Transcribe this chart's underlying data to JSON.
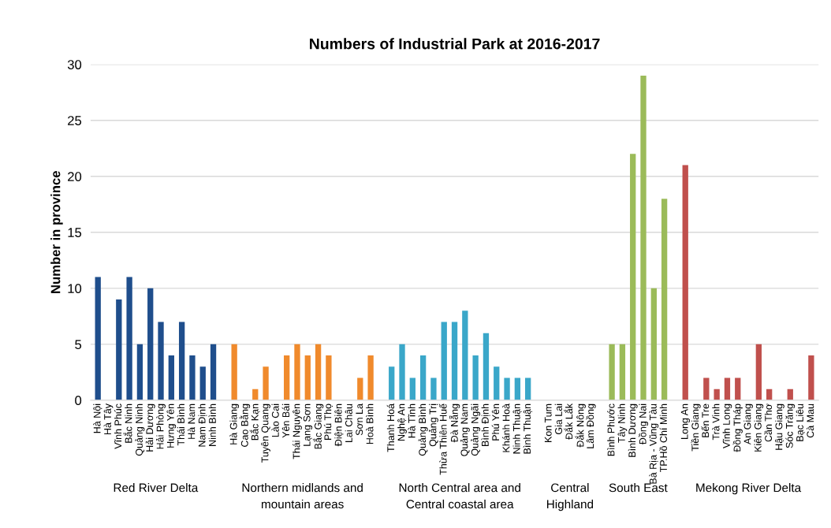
{
  "chart_data": {
    "type": "bar",
    "title": "Numbers of Industrial Park at 2016-2017",
    "ylabel": "Number in province",
    "categories": [
      "Hà Nội",
      "Hà Tây",
      "Vĩnh Phúc",
      "Bắc Ninh",
      "Quảng Ninh",
      "Hải Dương",
      "Hải Phòng",
      "Hưng Yên",
      "Thái Bình",
      "Hà Nam",
      "Nam Định",
      "Ninh Bình",
      null,
      "Hà Giang",
      "Cao Bằng",
      "Bắc Kạn",
      "Tuyên Quang",
      "Lào Cai",
      "Yên Bái",
      "Thái Nguyên",
      "Lạng Sơn",
      "Bắc Giang",
      "Phú Thọ",
      "Điện Biên",
      "Lai Châu",
      "Sơn La",
      "Hoà Bình",
      null,
      "Thanh Hoá",
      "Nghệ An",
      "Hà Tĩnh",
      "Quảng Bình",
      "Quảng Trị",
      "Thừa Thiên Huế",
      "Đà Nẵng",
      "Quảng Nam",
      "Quảng Ngãi",
      "Bình Định",
      "Phú Yên",
      "Khánh Hoà",
      "Ninh Thuận",
      "Bình Thuận",
      null,
      "Kon Tum",
      "Gia Lai",
      "Đắk Lắk",
      "Đắk Nông",
      "Lâm Đồng",
      null,
      "Bình Phước",
      "Tây Ninh",
      "Bình Dương",
      "Đồng Nai",
      "Bà Rịa - Vũng Tàu",
      "TP.Hồ Chí Minh",
      null,
      "Long An",
      "Tiền Giang",
      "Bến Tre",
      "Trà Vinh",
      "Vĩnh Long",
      "Đồng Tháp",
      "An Giang",
      "Kiên Giang",
      "Cần Thơ",
      "Hậu Giang",
      "Sóc Trăng",
      "Bạc Liêu",
      "Cà Mau"
    ],
    "values": [
      11,
      0,
      9,
      11,
      5,
      10,
      7,
      4,
      7,
      4,
      3,
      5,
      null,
      5,
      0,
      1,
      3,
      0,
      4,
      5,
      4,
      5,
      4,
      0,
      0,
      2,
      4,
      null,
      3,
      5,
      2,
      4,
      2,
      7,
      7,
      8,
      4,
      6,
      3,
      2,
      2,
      2,
      null,
      0,
      0,
      0,
      0,
      0,
      null,
      5,
      5,
      22,
      29,
      10,
      18,
      null,
      21,
      0,
      2,
      1,
      2,
      2,
      0,
      5,
      1,
      0,
      1,
      0,
      4
    ],
    "colors": [
      "#1f4e8c",
      "#1f4e8c",
      "#1f4e8c",
      "#1f4e8c",
      "#1f4e8c",
      "#1f4e8c",
      "#1f4e8c",
      "#1f4e8c",
      "#1f4e8c",
      "#1f4e8c",
      "#1f4e8c",
      "#1f4e8c",
      null,
      "#f08a2c",
      "#f08a2c",
      "#f08a2c",
      "#f08a2c",
      "#f08a2c",
      "#f08a2c",
      "#f08a2c",
      "#f08a2c",
      "#f08a2c",
      "#f08a2c",
      "#f08a2c",
      "#f08a2c",
      "#f08a2c",
      "#f08a2c",
      null,
      "#3aa7c9",
      "#3aa7c9",
      "#3aa7c9",
      "#3aa7c9",
      "#3aa7c9",
      "#3aa7c9",
      "#3aa7c9",
      "#3aa7c9",
      "#3aa7c9",
      "#3aa7c9",
      "#3aa7c9",
      "#3aa7c9",
      "#3aa7c9",
      "#3aa7c9",
      null,
      "#3aa7c9",
      "#3aa7c9",
      "#3aa7c9",
      "#3aa7c9",
      "#3aa7c9",
      null,
      "#9bbb59",
      "#9bbb59",
      "#9bbb59",
      "#9bbb59",
      "#9bbb59",
      "#9bbb59",
      null,
      "#c0504d",
      "#c0504d",
      "#c0504d",
      "#c0504d",
      "#c0504d",
      "#c0504d",
      "#c0504d",
      "#c0504d",
      "#c0504d",
      "#c0504d",
      "#c0504d",
      "#c0504d",
      "#c0504d"
    ],
    "annotations": [
      "Red River Delta",
      "Northern midlands and\nmountain areas",
      "North Central area and\nCentral coastal area",
      "Central\nHighland",
      "South East",
      "Mekong River Delta"
    ],
    "ylim": [
      0,
      30
    ],
    "yticks": [
      0,
      5,
      10,
      15,
      20,
      25,
      30
    ],
    "grid": "y"
  }
}
